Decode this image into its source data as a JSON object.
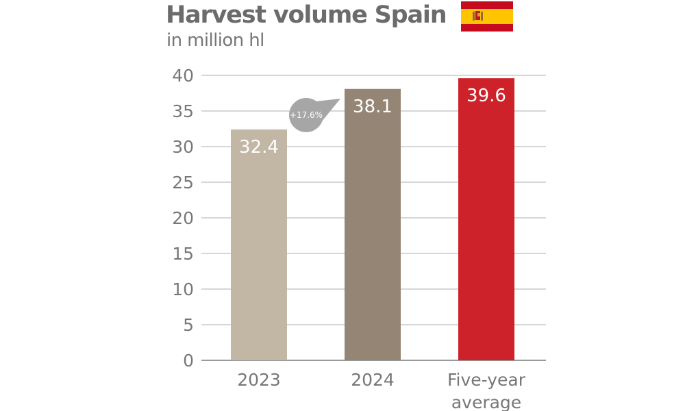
{
  "chart_data": {
    "type": "bar",
    "title": "Harvest volume Spain",
    "subtitle": "in million hl",
    "categories": [
      "2023",
      "2024",
      "Five-year average"
    ],
    "category_lines": [
      [
        "2023"
      ],
      [
        "2024"
      ],
      [
        "Five-year",
        "average"
      ]
    ],
    "values": [
      32.4,
      38.1,
      39.6
    ],
    "value_labels": [
      "32.4",
      "38.1",
      "39.6"
    ],
    "bar_colors": [
      "#c2b7a5",
      "#958575",
      "#cd2229"
    ],
    "ylim": [
      0,
      40
    ],
    "yticks": [
      0,
      5,
      10,
      15,
      20,
      25,
      30,
      35,
      40
    ],
    "grid": true,
    "annotation": {
      "text": "+17.6%",
      "color": "#a6a6a6"
    },
    "flag": {
      "country": "Spain",
      "icon": "spain-flag-icon",
      "colors": [
        "#c60b1e",
        "#ffc400"
      ]
    }
  }
}
